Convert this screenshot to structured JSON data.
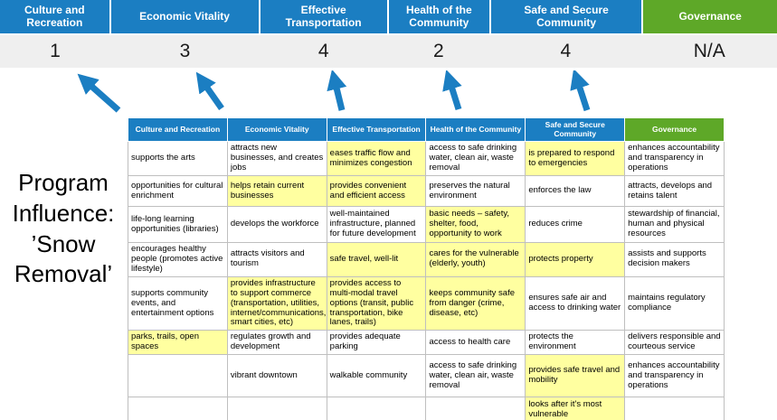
{
  "title": "Program Influence: ’Snow Removal’",
  "colors": {
    "header_blue": "#1b7ec2",
    "header_green": "#5ea828",
    "highlight": "#ffffa0",
    "score_row_bg": "#efefef",
    "arrow": "#1b7ec2"
  },
  "banner": {
    "columns": [
      {
        "label": "Culture and Recreation",
        "score": "1",
        "type": "blue"
      },
      {
        "label": "Economic Vitality",
        "score": "3",
        "type": "blue"
      },
      {
        "label": "Effective Transportation",
        "score": "4",
        "type": "blue"
      },
      {
        "label": "Health of the Community",
        "score": "2",
        "type": "blue"
      },
      {
        "label": "Safe and Secure Community",
        "score": "4",
        "type": "blue"
      },
      {
        "label": "Governance",
        "score": "N/A",
        "type": "green"
      }
    ]
  },
  "table": {
    "headers": [
      {
        "label": "Culture and Recreation",
        "type": "blue"
      },
      {
        "label": "Economic Vitality",
        "type": "blue"
      },
      {
        "label": "Effective Transportation",
        "type": "blue"
      },
      {
        "label": "Health of the Community",
        "type": "blue"
      },
      {
        "label": "Safe and Secure Community",
        "type": "blue"
      },
      {
        "label": "Governance",
        "type": "green"
      }
    ],
    "rows": [
      [
        {
          "text": "supports the arts",
          "highlight": false
        },
        {
          "text": "attracts new businesses, and creates jobs",
          "highlight": false
        },
        {
          "text": "eases traffic flow and minimizes congestion",
          "highlight": true
        },
        {
          "text": "access to safe drinking water, clean air, waste removal",
          "highlight": false
        },
        {
          "text": "is prepared to respond to emergencies",
          "highlight": true
        },
        {
          "text": "enhances accountability and transparency in operations",
          "highlight": false
        }
      ],
      [
        {
          "text": "opportunities for cultural enrichment",
          "highlight": false
        },
        {
          "text": "helps retain current businesses",
          "highlight": true
        },
        {
          "text": "provides convenient and efficient access",
          "highlight": true
        },
        {
          "text": "preserves the natural environment",
          "highlight": false
        },
        {
          "text": "enforces the law",
          "highlight": false
        },
        {
          "text": "attracts, develops and retains talent",
          "highlight": false
        }
      ],
      [
        {
          "text": "life-long learning opportunities (libraries)",
          "highlight": false
        },
        {
          "text": "develops the workforce",
          "highlight": false
        },
        {
          "text": "well-maintained infrastructure, planned for future development",
          "highlight": false
        },
        {
          "text": "basic needs – safety, shelter, food, opportunity to work",
          "highlight": true
        },
        {
          "text": "reduces crime",
          "highlight": false
        },
        {
          "text": "stewardship of financial, human and physical resources",
          "highlight": false
        }
      ],
      [
        {
          "text": "encourages healthy people (promotes active lifestyle)",
          "highlight": false
        },
        {
          "text": "attracts visitors and tourism",
          "highlight": false
        },
        {
          "text": "safe travel, well-lit",
          "highlight": true
        },
        {
          "text": "cares for the vulnerable (elderly, youth)",
          "highlight": true
        },
        {
          "text": "protects property",
          "highlight": true
        },
        {
          "text": "assists and supports decision makers",
          "highlight": false
        }
      ],
      [
        {
          "text": "supports community events, and entertainment options",
          "highlight": false
        },
        {
          "text": "provides infrastructure to support commerce (transportation, utilities, internet/communications, smart cities, etc)",
          "highlight": true
        },
        {
          "text": "provides access to multi-modal travel options (transit, public transportation, bike lanes, trails)",
          "highlight": true
        },
        {
          "text": "keeps community safe from danger (crime, disease, etc)",
          "highlight": true
        },
        {
          "text": "ensures safe air and access to drinking water",
          "highlight": false
        },
        {
          "text": "maintains regulatory compliance",
          "highlight": false
        }
      ],
      [
        {
          "text": "parks, trails, open spaces",
          "highlight": true
        },
        {
          "text": "regulates growth and development",
          "highlight": false
        },
        {
          "text": "provides adequate parking",
          "highlight": false
        },
        {
          "text": "access to health care",
          "highlight": false
        },
        {
          "text": "protects the environment",
          "highlight": false
        },
        {
          "text": "delivers responsible and courteous service",
          "highlight": false
        }
      ],
      [
        {
          "text": "",
          "highlight": false
        },
        {
          "text": "vibrant downtown",
          "highlight": false
        },
        {
          "text": "walkable community",
          "highlight": false
        },
        {
          "text": "access to safe drinking water, clean air, waste removal",
          "highlight": false
        },
        {
          "text": "provides safe travel and mobility",
          "highlight": true
        },
        {
          "text": "enhances accountability and transparency in operations",
          "highlight": false
        }
      ],
      [
        {
          "text": "",
          "highlight": false
        },
        {
          "text": "",
          "highlight": false
        },
        {
          "text": "",
          "highlight": false
        },
        {
          "text": "",
          "highlight": false
        },
        {
          "text": "looks after it's most vulnerable",
          "highlight": true
        },
        {
          "text": "",
          "highlight": false
        }
      ]
    ]
  }
}
